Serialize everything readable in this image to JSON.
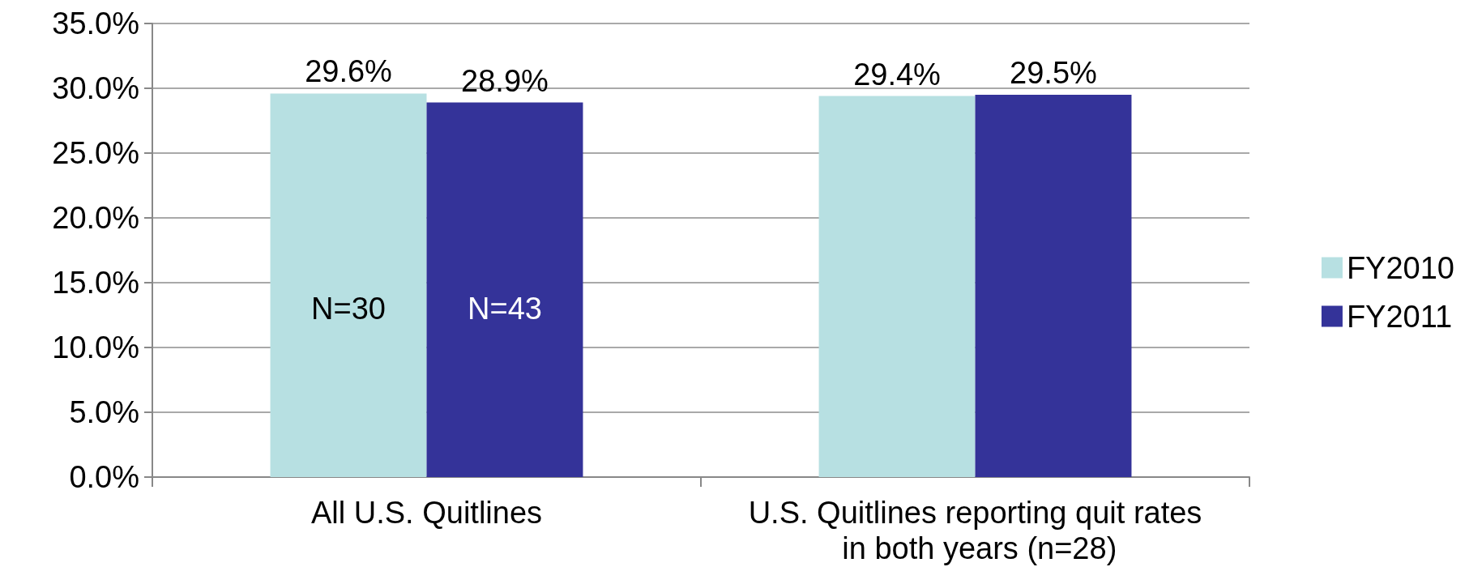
{
  "chart_data": {
    "type": "bar",
    "categories": [
      "All U.S. Quitlines",
      "U.S. Quitlines reporting quit rates in both years (n=28)"
    ],
    "series": [
      {
        "name": "FY2010",
        "color": "#b7e0e2",
        "values": [
          29.6,
          29.4
        ],
        "value_labels": [
          "29.6%",
          "29.4%"
        ]
      },
      {
        "name": "FY2011",
        "color": "#343399",
        "values": [
          28.9,
          29.5
        ],
        "value_labels": [
          "28.9%",
          "29.5%"
        ]
      }
    ],
    "ylim": [
      0,
      35
    ],
    "yticks": [
      {
        "value": 0,
        "label": "0.0%"
      },
      {
        "value": 5,
        "label": "5.0%"
      },
      {
        "value": 10,
        "label": "10.0%"
      },
      {
        "value": 15,
        "label": "15.0%"
      },
      {
        "value": 20,
        "label": "20.0%"
      },
      {
        "value": 25,
        "label": "25.0%"
      },
      {
        "value": 30,
        "label": "30.0%"
      },
      {
        "value": 35,
        "label": "35.0%"
      }
    ],
    "annotations": [
      {
        "text": "N=30",
        "x": "All U.S. Quitlines",
        "y": 13
      },
      {
        "text": "N=43",
        "x": "All U.S. Quitlines",
        "y": 13
      }
    ],
    "grid": true,
    "legend": "right"
  }
}
